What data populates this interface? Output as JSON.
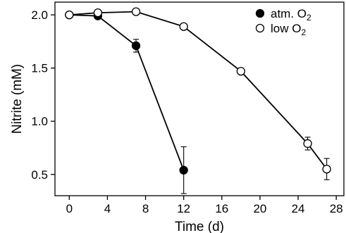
{
  "chart_data": {
    "type": "line",
    "xlabel": "Time (d)",
    "ylabel": "Nitrite (mM)",
    "xlim": [
      -1.5,
      28.8
    ],
    "ylim": [
      0.3,
      2.12
    ],
    "x_ticks": [
      "0",
      "4",
      "8",
      "12",
      "16",
      "20",
      "24",
      "28"
    ],
    "y_ticks": [
      "0.5",
      "1.0",
      "1.5",
      "2.0"
    ],
    "grid": false,
    "legend_position": "top-right",
    "series": [
      {
        "name_main": "atm. O",
        "name_sub": "2",
        "marker": "filled-circle",
        "color": "#000000",
        "x": [
          0,
          3,
          7,
          12
        ],
        "y": [
          2.0,
          1.99,
          1.71,
          0.54
        ],
        "err": [
          0,
          0.02,
          0.06,
          0.22
        ]
      },
      {
        "name_main": "low O",
        "name_sub": "2",
        "marker": "open-circle",
        "color": "#000000",
        "x": [
          0,
          3,
          7,
          12,
          18,
          25,
          27
        ],
        "y": [
          2.0,
          2.02,
          2.03,
          1.89,
          1.47,
          0.79,
          0.55
        ],
        "err": [
          0,
          0,
          0,
          0,
          0,
          0.06,
          0.1
        ]
      }
    ]
  }
}
